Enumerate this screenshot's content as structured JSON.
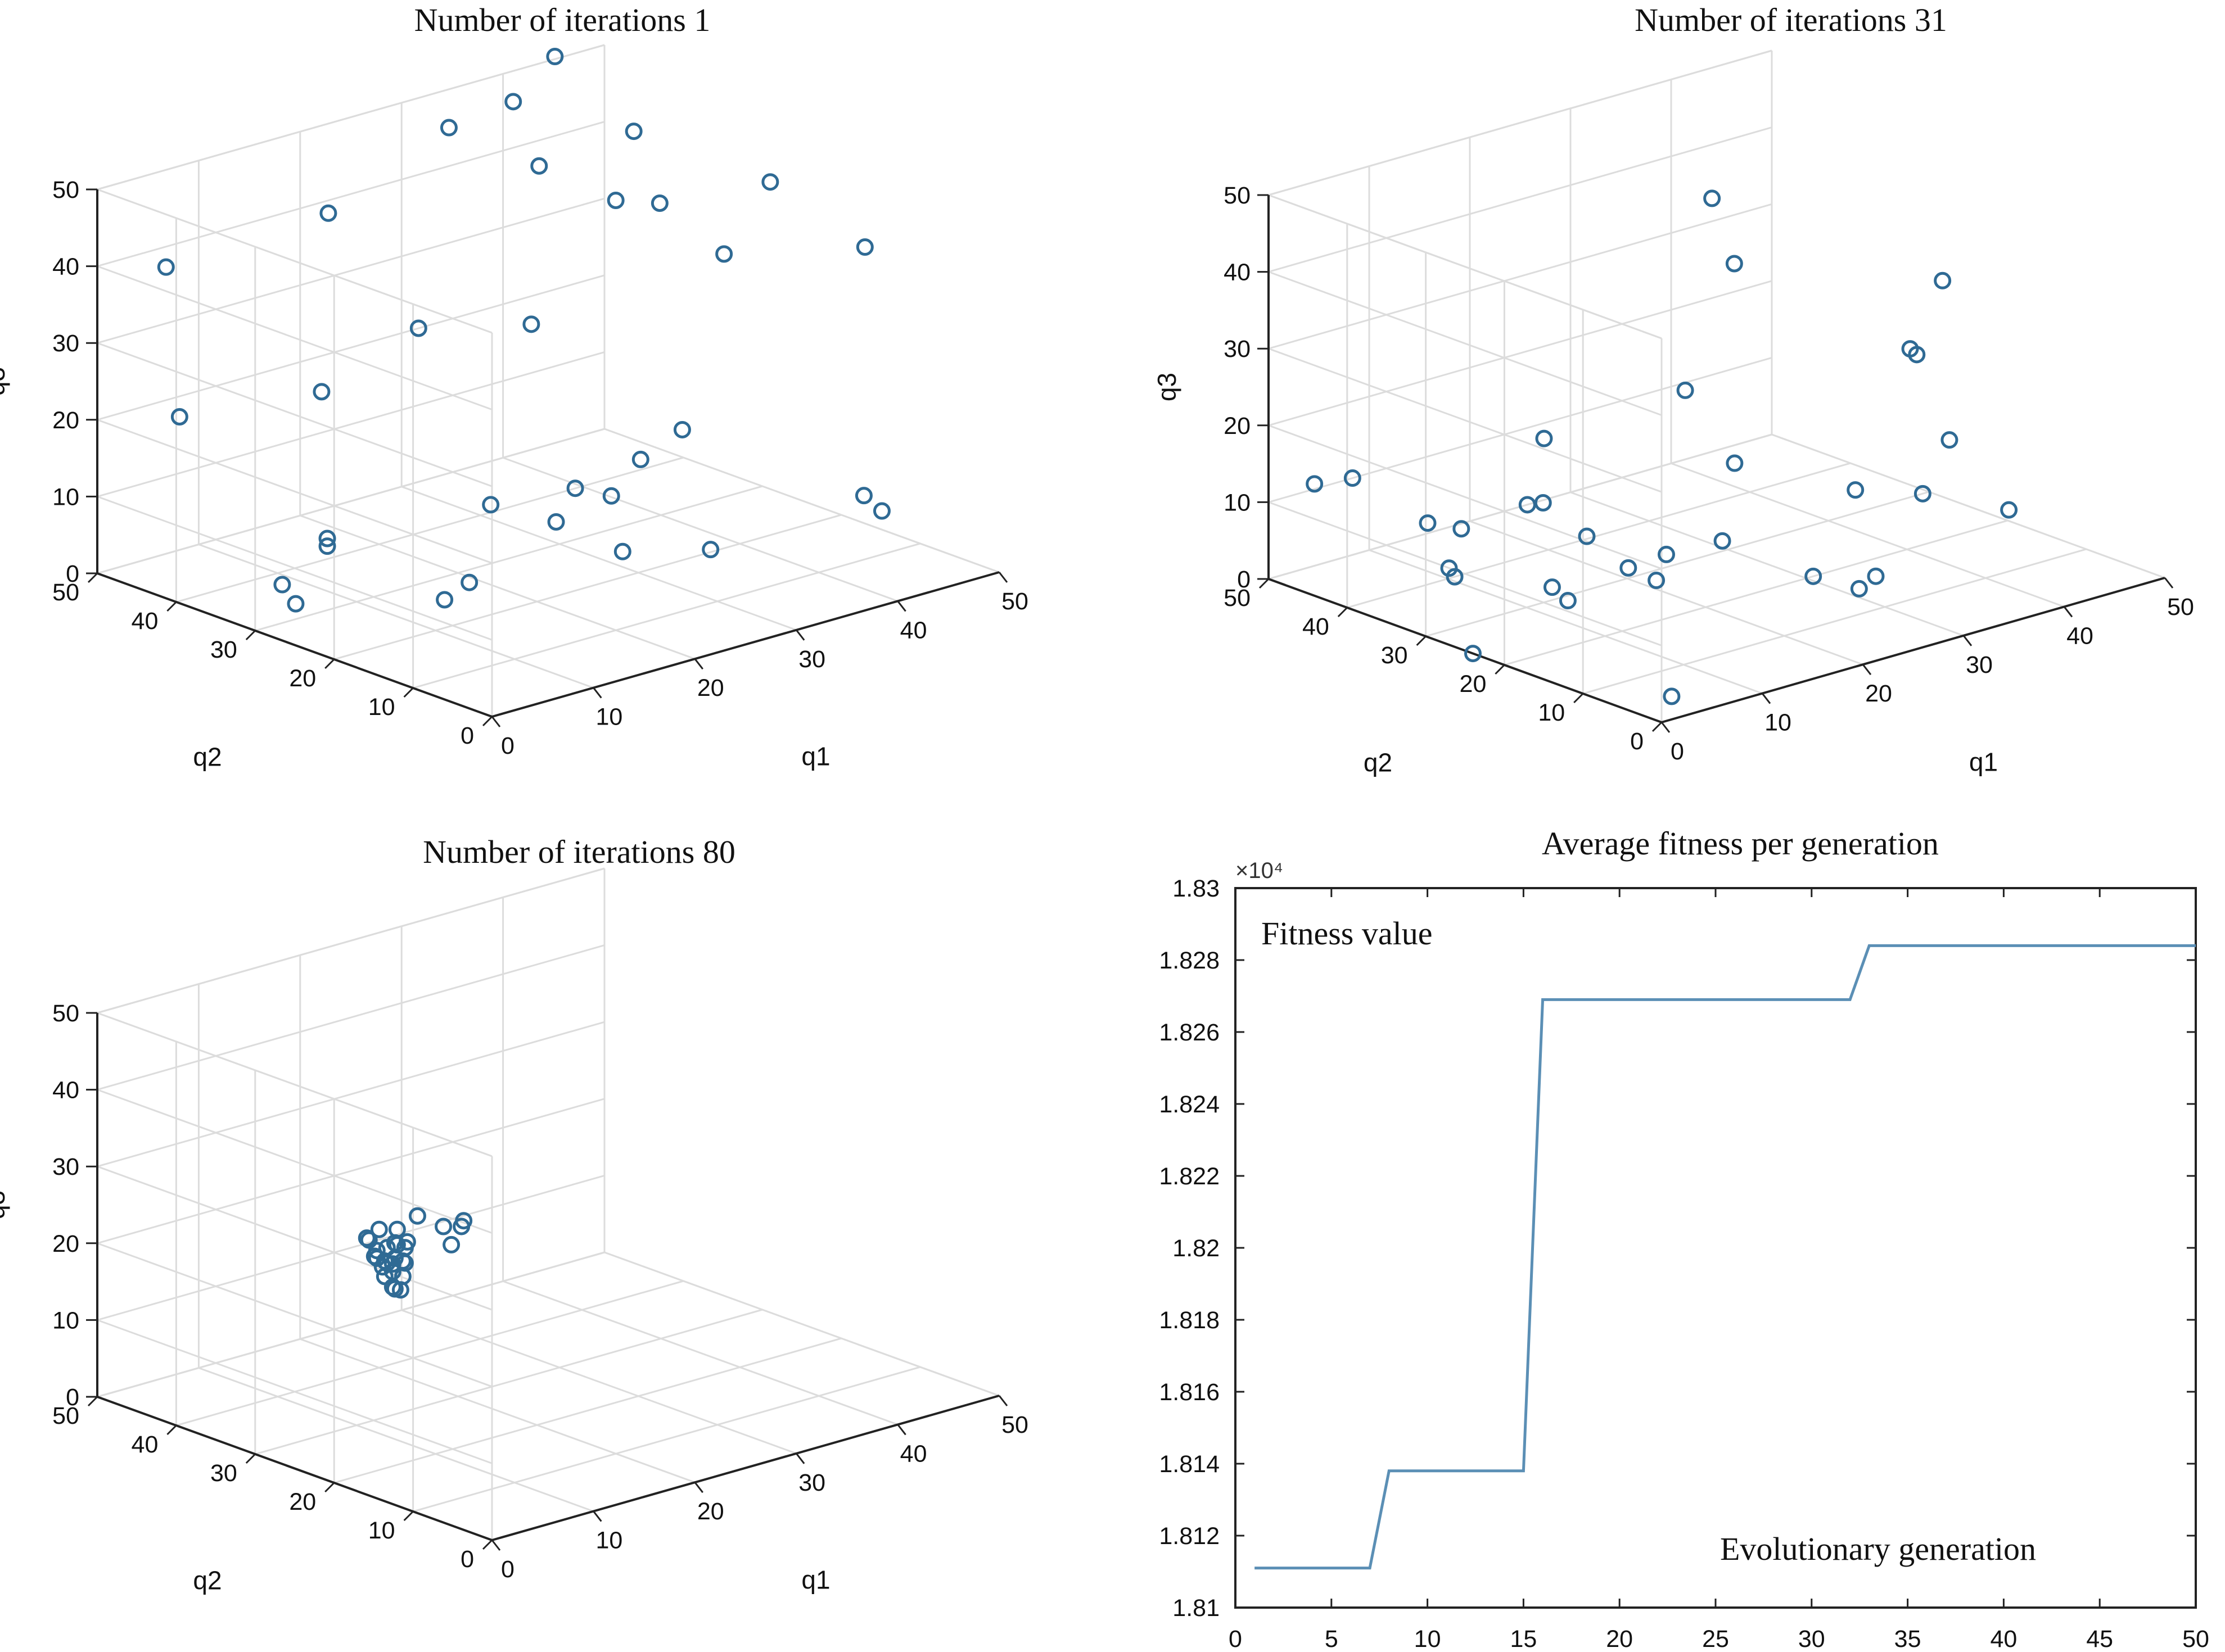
{
  "chart_data": [
    {
      "type": "scatter3d",
      "title": "Number of iterations 1",
      "xlabel": "q1",
      "ylabel": "q2",
      "zlabel": "q3",
      "xlim": [
        0,
        50
      ],
      "ylim": [
        0,
        50
      ],
      "zlim": [
        0,
        50
      ],
      "ticks": [
        0,
        10,
        20,
        30,
        40,
        50
      ],
      "points": [
        [
          6,
          49,
          38
        ],
        [
          5,
          46,
          20
        ],
        [
          22,
          49,
          39
        ],
        [
          4,
          30,
          2
        ],
        [
          5,
          33,
          3
        ],
        [
          27,
          44,
          24
        ],
        [
          11,
          35,
          6
        ],
        [
          11,
          35,
          5
        ],
        [
          19,
          46,
          18
        ],
        [
          30,
          44,
          49
        ],
        [
          34,
          41,
          52
        ],
        [
          42,
          46,
          53
        ],
        [
          28,
          31,
          29
        ],
        [
          14,
          24,
          1
        ],
        [
          18,
          26,
          1
        ],
        [
          42,
          48,
          38
        ],
        [
          49,
          45,
          41
        ],
        [
          24,
          31,
          7
        ],
        [
          30,
          28,
          8
        ],
        [
          32,
          26,
          7
        ],
        [
          38,
          30,
          8
        ],
        [
          46,
          35,
          7
        ],
        [
          43,
          34,
          38
        ],
        [
          47,
          31,
          31
        ],
        [
          41,
          37,
          38
        ],
        [
          25,
          24,
          7
        ],
        [
          30,
          22,
          2
        ],
        [
          34,
          16,
          3
        ],
        [
          47,
          11,
          5
        ],
        [
          39,
          3,
          13
        ],
        [
          50,
          17,
          36
        ],
        [
          50,
          29,
          40
        ]
      ]
    },
    {
      "type": "scatter3d",
      "title": "Number of iterations 31",
      "xlabel": "q1",
      "ylabel": "q2",
      "zlabel": "q3",
      "xlim": [
        0,
        50
      ],
      "ylim": [
        0,
        50
      ],
      "zlim": [
        0,
        50
      ],
      "ticks": [
        0,
        10,
        20,
        30,
        40,
        50
      ],
      "points": [
        [
          3,
          48,
          12
        ],
        [
          6,
          47,
          12
        ],
        [
          8,
          40,
          8
        ],
        [
          7,
          36,
          4
        ],
        [
          9,
          37,
          8
        ],
        [
          6,
          34,
          4
        ],
        [
          18,
          38,
          16
        ],
        [
          14,
          33,
          11
        ],
        [
          14,
          35,
          10
        ],
        [
          16,
          30,
          7
        ],
        [
          11,
          28,
          3
        ],
        [
          17,
          26,
          4
        ],
        [
          20,
          25,
          5
        ],
        [
          30,
          32,
          45
        ],
        [
          33,
          33,
          35
        ],
        [
          25,
          29,
          23
        ],
        [
          26,
          24,
          15
        ],
        [
          24,
          23,
          6
        ],
        [
          11,
          26,
          2
        ],
        [
          19,
          25,
          2
        ],
        [
          26,
          14,
          4
        ],
        [
          29,
          12,
          2
        ],
        [
          33,
          15,
          1
        ],
        [
          40,
          18,
          8
        ],
        [
          47,
          16,
          4
        ],
        [
          45,
          21,
          12
        ],
        [
          48,
          29,
          19
        ],
        [
          45,
          26,
          22
        ],
        [
          49,
          27,
          29
        ],
        [
          38,
          24,
          7
        ],
        [
          0,
          24,
          0
        ],
        [
          1,
          0,
          3
        ]
      ]
    },
    {
      "type": "scatter3d",
      "title": "Number of iterations 80",
      "xlabel": "q1",
      "ylabel": "q2",
      "zlabel": "q3",
      "xlim": [
        0,
        50
      ],
      "ylim": [
        0,
        50
      ],
      "zlim": [
        0,
        50
      ],
      "ticks": [
        0,
        10,
        20,
        30,
        40,
        50
      ],
      "points": [
        [
          12,
          29,
          21
        ],
        [
          13,
          29,
          21
        ],
        [
          12,
          28,
          20
        ],
        [
          13,
          28,
          19
        ],
        [
          12,
          28,
          18
        ],
        [
          14,
          30,
          22
        ],
        [
          13,
          30,
          22
        ],
        [
          12,
          30,
          22
        ],
        [
          11,
          29,
          22
        ],
        [
          13,
          31,
          24
        ],
        [
          14,
          30,
          24
        ],
        [
          11,
          30,
          24
        ],
        [
          12,
          27,
          18
        ],
        [
          13,
          29,
          17
        ],
        [
          12,
          30,
          21
        ],
        [
          14,
          29,
          20
        ],
        [
          13,
          28,
          21
        ],
        [
          11,
          28,
          21
        ],
        [
          12,
          29,
          19
        ],
        [
          15,
          30,
          22
        ],
        [
          12,
          31,
          23
        ],
        [
          13,
          29,
          23
        ],
        [
          17,
          28,
          24
        ],
        [
          16,
          30,
          25
        ],
        [
          18,
          27,
          24
        ],
        [
          17,
          27,
          22
        ],
        [
          19,
          28,
          24
        ],
        [
          12,
          28,
          21
        ],
        [
          13,
          30,
          20
        ],
        [
          14,
          29,
          22
        ]
      ]
    },
    {
      "type": "line",
      "title": "Average fitness per generation",
      "xlabel": "Evolutionary generation",
      "ylabel": "Fitness value",
      "exponent": "×10⁴",
      "xlim": [
        0,
        50
      ],
      "ylim": [
        1.81,
        1.83
      ],
      "xticks": [
        0,
        5,
        10,
        15,
        20,
        25,
        30,
        35,
        40,
        45,
        50
      ],
      "yticks": [
        "1.81",
        "1.812",
        "1.814",
        "1.816",
        "1.818",
        "1.82",
        "1.822",
        "1.824",
        "1.826",
        "1.828",
        "1.83"
      ],
      "series": [
        {
          "name": "Average fitness",
          "x": [
            1,
            7,
            8,
            15,
            16,
            32,
            33,
            50
          ],
          "y": [
            1.8111,
            1.8111,
            1.8138,
            1.8138,
            1.8269,
            1.8269,
            1.8284,
            1.8284
          ]
        }
      ]
    }
  ]
}
